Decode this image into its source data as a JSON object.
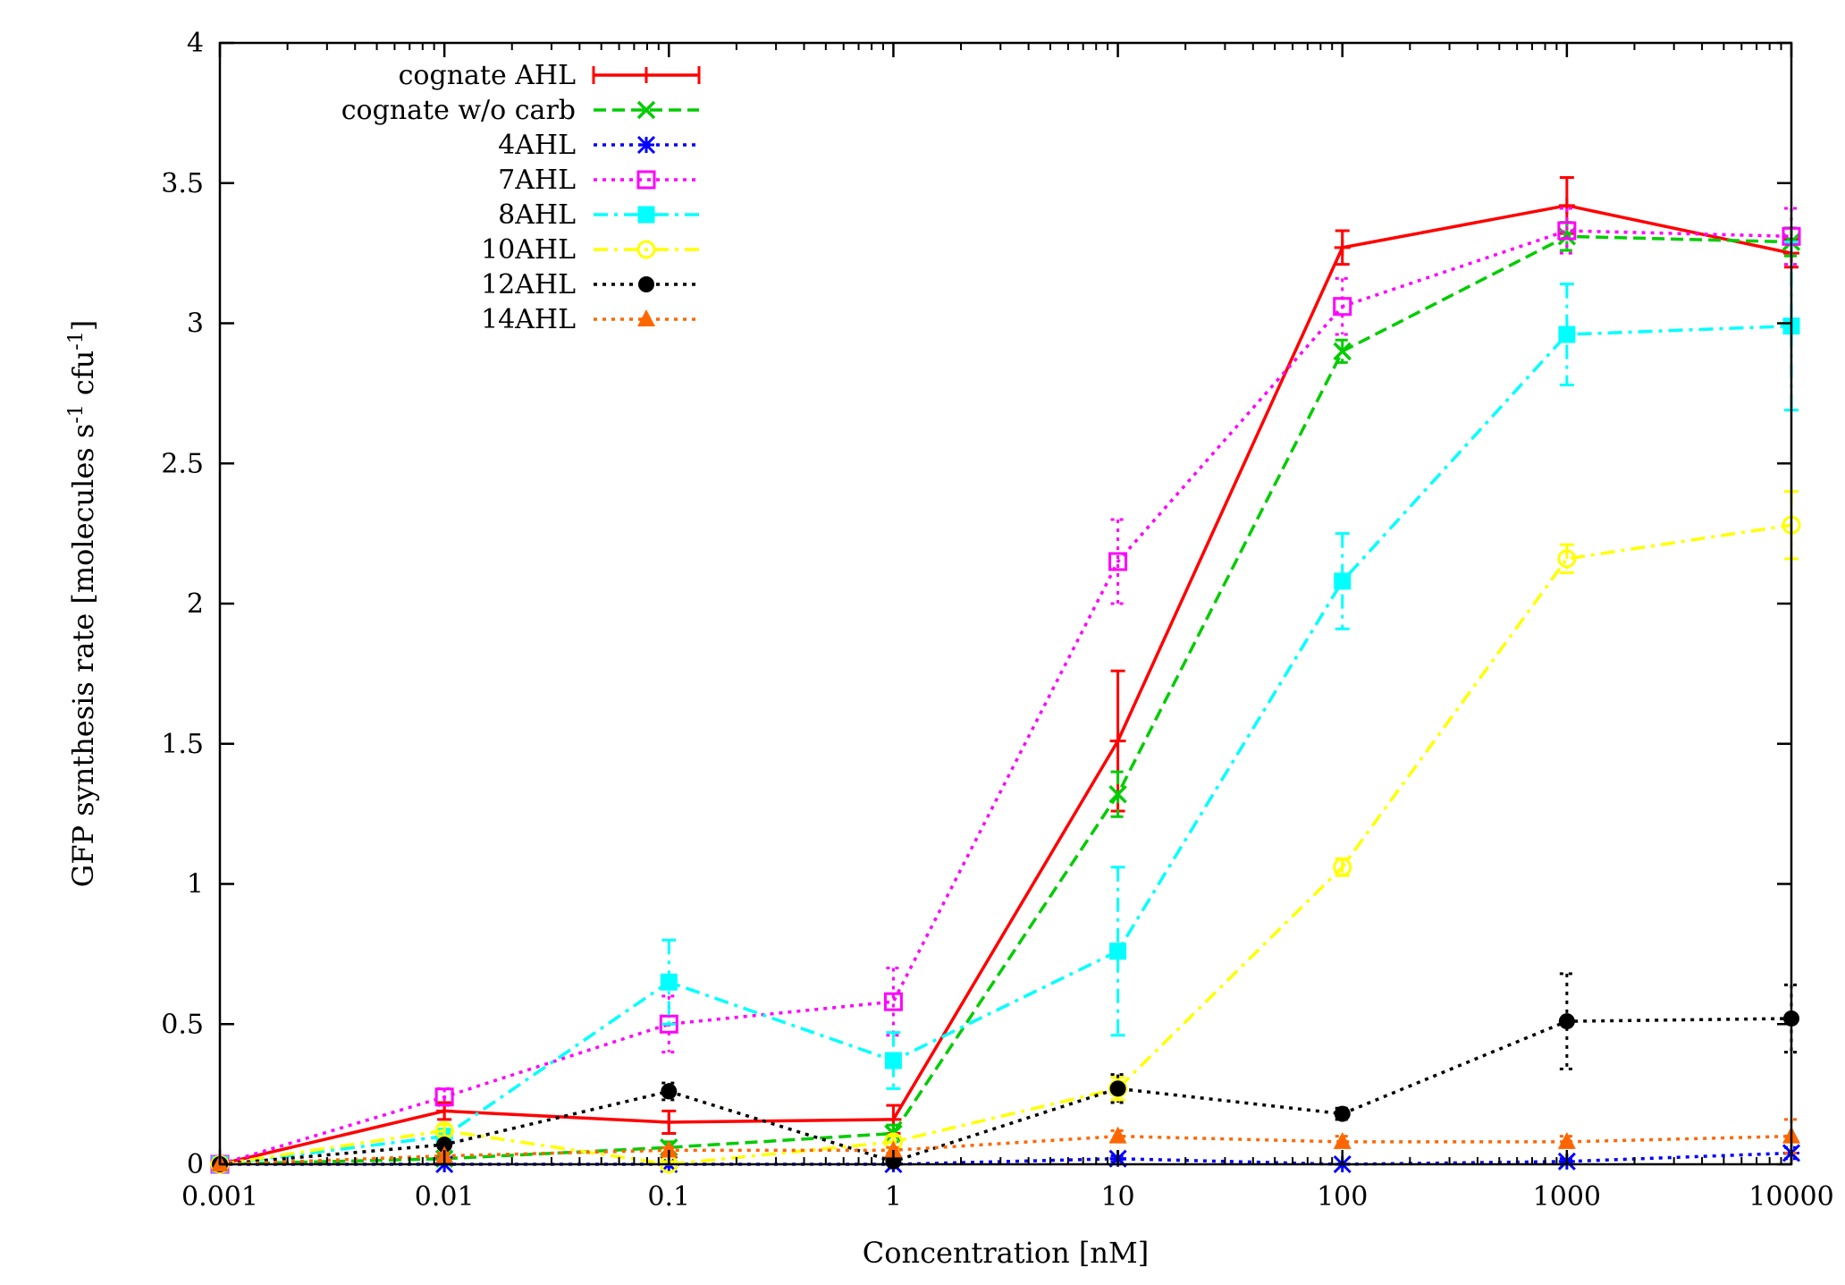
{
  "chart_data": {
    "type": "line",
    "title": "",
    "xlabel": "Concentration [nM]",
    "ylabel": {
      "prefix": "GFP synthesis rate [molecules s",
      "sup1": "-1",
      "middle": " cfu",
      "sup2": "-1",
      "suffix": "]"
    },
    "x_scale": "log",
    "xlim": [
      0.001,
      10000
    ],
    "ylim": [
      0,
      4
    ],
    "x": [
      0.001,
      0.01,
      0.1,
      1,
      10,
      100,
      1000,
      10000
    ],
    "x_tick_labels": [
      "0.001",
      "0.01",
      "0.1",
      "1",
      "10",
      "100",
      "1000",
      "10000"
    ],
    "y_ticks": [
      0,
      0.5,
      1,
      1.5,
      2,
      2.5,
      3,
      3.5,
      4
    ],
    "y_tick_labels": [
      "0",
      "0.5",
      "1",
      "1.5",
      "2",
      "2.5",
      "3",
      "3.5",
      "4"
    ],
    "grid": false,
    "legend_position": "top-left",
    "series": [
      {
        "name": "cognate AHL",
        "color": "#ff0000",
        "dash": "solid",
        "marker": "plus",
        "values": [
          0,
          0.19,
          0.15,
          0.16,
          1.51,
          3.27,
          3.42,
          3.25
        ],
        "errors": [
          0,
          0.03,
          0.04,
          0.05,
          0.25,
          0.06,
          0.1,
          0.05
        ]
      },
      {
        "name": "cognate w/o carb",
        "color": "#00cc00",
        "dash": "dash",
        "marker": "cross",
        "values": [
          0,
          0.02,
          0.06,
          0.11,
          1.32,
          2.9,
          3.31,
          3.29
        ],
        "errors": [
          0,
          0.01,
          0.02,
          0.03,
          0.08,
          0.04,
          0.05,
          0.05
        ]
      },
      {
        "name": "4AHL",
        "color": "#0000ff",
        "dash": "dot",
        "marker": "asterisk",
        "values": [
          0,
          0,
          0,
          0,
          0.02,
          0,
          0.01,
          0.04
        ],
        "errors": [
          0,
          0,
          0,
          0,
          0.01,
          0,
          0.01,
          0.02
        ]
      },
      {
        "name": "7AHL",
        "color": "#ff00ff",
        "dash": "dot",
        "marker": "square-open",
        "values": [
          0,
          0.24,
          0.5,
          0.58,
          2.15,
          3.06,
          3.33,
          3.31
        ],
        "errors": [
          0,
          0.03,
          0.1,
          0.12,
          0.15,
          0.1,
          0.08,
          0.1
        ]
      },
      {
        "name": "8AHL",
        "color": "#00ffff",
        "dash": "dashdot",
        "marker": "square-filled",
        "values": [
          0,
          0.1,
          0.65,
          0.37,
          0.76,
          2.08,
          2.96,
          2.99
        ],
        "errors": [
          0,
          0.02,
          0.15,
          0.1,
          0.3,
          0.17,
          0.18,
          0.3
        ]
      },
      {
        "name": "10AHL",
        "color": "#ffff00",
        "dash": "dashdot",
        "marker": "circle-open",
        "values": [
          0,
          0.12,
          0,
          0.08,
          0.27,
          1.06,
          2.16,
          2.28
        ],
        "errors": [
          0,
          0.02,
          0.01,
          0.02,
          0.04,
          0.03,
          0.05,
          0.12
        ]
      },
      {
        "name": "12AHL",
        "color": "#000000",
        "dash": "dot",
        "marker": "circle-filled",
        "values": [
          0,
          0.07,
          0.26,
          0.01,
          0.27,
          0.18,
          0.51,
          0.52
        ],
        "errors": [
          0,
          0.01,
          0.03,
          0.01,
          0.05,
          0.02,
          0.17,
          0.12
        ]
      },
      {
        "name": "14AHL",
        "color": "#ff6600",
        "dash": "dot",
        "marker": "triangle-filled",
        "values": [
          0,
          0.03,
          0.05,
          0.05,
          0.1,
          0.08,
          0.08,
          0.1
        ],
        "errors": [
          0,
          0.01,
          0.01,
          0.01,
          0.02,
          0.02,
          0.02,
          0.06
        ]
      }
    ]
  }
}
